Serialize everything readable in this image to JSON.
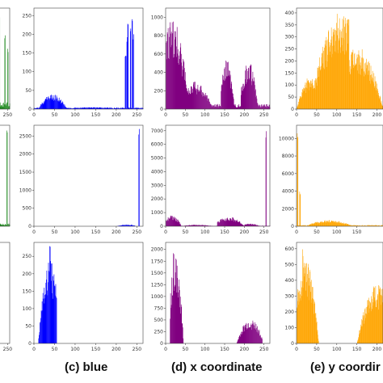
{
  "captions": {
    "blue": "(c) blue",
    "x_coordinate": "(d) x coordinate",
    "y_coordinate": "(e) y coordir"
  },
  "chart_data": [
    {
      "type": "bar",
      "row": 0,
      "col": "partial-left",
      "color": "#228b22",
      "x_ticks": [
        250
      ],
      "y_ticks": [],
      "xlim": [
        0,
        255
      ],
      "ylim": [
        0,
        1
      ],
      "peaks": [
        {
          "x": 230,
          "y": 0.95
        },
        {
          "x": 243,
          "y": 0.75
        },
        {
          "x": 250,
          "y": 0.6
        }
      ],
      "baseline": 0.05
    },
    {
      "type": "bar",
      "row": 0,
      "col": "blue",
      "color": "#0000ff",
      "x_ticks": [
        0,
        50,
        100,
        150,
        200,
        250
      ],
      "y_ticks": [
        0,
        50,
        100,
        150,
        200,
        250
      ],
      "xlim": [
        0,
        265
      ],
      "ylim": [
        0,
        270
      ],
      "regions": [
        {
          "from": 10,
          "to": 80,
          "center": 45,
          "height": 40
        },
        {
          "from": 80,
          "to": 200,
          "center": 140,
          "height": 5
        }
      ],
      "peaks": [
        {
          "x": 222,
          "y": 150
        },
        {
          "x": 226,
          "y": 200
        },
        {
          "x": 228,
          "y": 240
        },
        {
          "x": 234,
          "y": 230
        },
        {
          "x": 238,
          "y": 260
        },
        {
          "x": 241,
          "y": 200
        }
      ],
      "baseline": 3
    },
    {
      "type": "bar",
      "row": 0,
      "col": "x_coordinate",
      "color": "#800080",
      "x_ticks": [
        0,
        50,
        100,
        150,
        200,
        250
      ],
      "y_ticks": [
        0,
        200,
        400,
        600,
        800,
        1000
      ],
      "xlim": [
        0,
        265
      ],
      "ylim": [
        0,
        1100
      ],
      "regions": [
        {
          "from": 0,
          "to": 60,
          "center": 15,
          "height": 1000
        },
        {
          "from": 50,
          "to": 120,
          "center": 70,
          "height": 300
        },
        {
          "from": 140,
          "to": 175,
          "center": 155,
          "height": 550
        },
        {
          "from": 190,
          "to": 235,
          "center": 210,
          "height": 520
        }
      ],
      "baseline": 40
    },
    {
      "type": "bar",
      "row": 0,
      "col": "y_coordinate",
      "color": "#ffa500",
      "x_ticks": [
        0,
        50,
        100,
        150,
        200
      ],
      "y_ticks": [
        0,
        50,
        100,
        150,
        200,
        250,
        300,
        350,
        400
      ],
      "xlim": [
        0,
        215
      ],
      "ylim": [
        0,
        420
      ],
      "regions": [
        {
          "from": 0,
          "to": 40,
          "center": 40,
          "height": 150
        },
        {
          "from": 30,
          "to": 130,
          "center": 115,
          "height": 410
        },
        {
          "from": 120,
          "to": 215,
          "center": 150,
          "height": 260
        }
      ],
      "baseline": 10
    },
    {
      "type": "bar",
      "row": 1,
      "col": "partial-left",
      "color": "#228b22",
      "x_ticks": [],
      "y_ticks": [],
      "xlim": [
        0,
        255
      ],
      "ylim": [
        0,
        1
      ],
      "peaks": [
        {
          "x": 248,
          "y": 0.95
        }
      ],
      "baseline": 0.02
    },
    {
      "type": "bar",
      "row": 1,
      "col": "blue",
      "color": "#0000ff",
      "x_ticks": [
        0,
        50,
        100,
        150,
        200,
        250
      ],
      "y_ticks": [
        0,
        500,
        1000,
        1500,
        2000,
        2500
      ],
      "xlim": [
        0,
        265
      ],
      "ylim": [
        0,
        2800
      ],
      "regions": [
        {
          "from": 200,
          "to": 245,
          "center": 225,
          "height": 50
        }
      ],
      "peaks": [
        {
          "x": 255,
          "y": 2700
        }
      ],
      "baseline": 0
    },
    {
      "type": "bar",
      "row": 1,
      "col": "x_coordinate",
      "color": "#800080",
      "x_ticks": [
        0,
        50,
        100,
        150,
        200,
        250
      ],
      "y_ticks": [
        0,
        1000,
        2000,
        3000,
        4000,
        5000,
        6000,
        7000
      ],
      "xlim": [
        0,
        265
      ],
      "ylim": [
        0,
        7400
      ],
      "regions": [
        {
          "from": 0,
          "to": 40,
          "center": 15,
          "height": 800
        },
        {
          "from": 40,
          "to": 120,
          "center": 80,
          "height": 120
        },
        {
          "from": 130,
          "to": 200,
          "center": 160,
          "height": 700
        },
        {
          "from": 200,
          "to": 240,
          "center": 215,
          "height": 200
        }
      ],
      "peaks": [
        {
          "x": 255,
          "y": 7000
        }
      ],
      "baseline": 30
    },
    {
      "type": "bar",
      "row": 1,
      "col": "y_coordinate",
      "color": "#ffa500",
      "x_ticks": [
        0,
        50,
        100,
        150
      ],
      "y_ticks": [
        0,
        2000,
        4000,
        6000,
        8000,
        10000
      ],
      "xlim": [
        0,
        215
      ],
      "ylim": [
        0,
        11500
      ],
      "regions": [
        {
          "from": 30,
          "to": 140,
          "center": 80,
          "height": 700
        }
      ],
      "peaks": [
        {
          "x": 2,
          "y": 11000
        },
        {
          "x": 8,
          "y": 4000
        }
      ],
      "baseline": 100
    },
    {
      "type": "bar",
      "row": 2,
      "col": "partial-left",
      "color": "#228b22",
      "x_ticks": [
        250
      ],
      "y_ticks": [],
      "xlim": [
        0,
        255
      ],
      "ylim": [
        0,
        1
      ],
      "peaks": [],
      "baseline": 0
    },
    {
      "type": "bar",
      "row": 2,
      "col": "blue",
      "color": "#0000ff",
      "x_ticks": [
        0,
        50,
        100,
        150,
        200,
        250
      ],
      "y_ticks": [
        0,
        50,
        100,
        150,
        200,
        250
      ],
      "xlim": [
        0,
        265
      ],
      "ylim": [
        0,
        290
      ],
      "regions": [
        {
          "from": 10,
          "to": 55,
          "center": 38,
          "height": 240
        },
        {
          "from": 12,
          "to": 30,
          "center": 22,
          "height": 130
        }
      ],
      "peaks": [
        {
          "x": 38,
          "y": 280
        }
      ],
      "baseline": 0
    },
    {
      "type": "bar",
      "row": 2,
      "col": "x_coordinate",
      "color": "#800080",
      "x_ticks": [
        0,
        50,
        100,
        150,
        200,
        250
      ],
      "y_ticks": [
        0,
        250,
        500,
        750,
        1000,
        1250,
        1500,
        1750,
        2000
      ],
      "xlim": [
        0,
        265
      ],
      "ylim": [
        0,
        2150
      ],
      "regions": [
        {
          "from": 10,
          "to": 45,
          "center": 25,
          "height": 1900
        },
        {
          "from": 180,
          "to": 245,
          "center": 215,
          "height": 520
        }
      ],
      "peaks": [
        {
          "x": 20,
          "y": 2050
        }
      ],
      "baseline": 0
    },
    {
      "type": "bar",
      "row": 2,
      "col": "y_coordinate",
      "color": "#ffa500",
      "x_ticks": [
        0,
        50,
        100,
        150,
        200
      ],
      "y_ticks": [
        0,
        100,
        200,
        300,
        400,
        500,
        600
      ],
      "xlim": [
        0,
        215
      ],
      "ylim": [
        0,
        640
      ],
      "regions": [
        {
          "from": 0,
          "to": 55,
          "center": 20,
          "height": 540
        },
        {
          "from": 150,
          "to": 215,
          "center": 200,
          "height": 380
        }
      ],
      "peaks": [
        {
          "x": 15,
          "y": 600
        }
      ],
      "baseline": 0
    }
  ]
}
